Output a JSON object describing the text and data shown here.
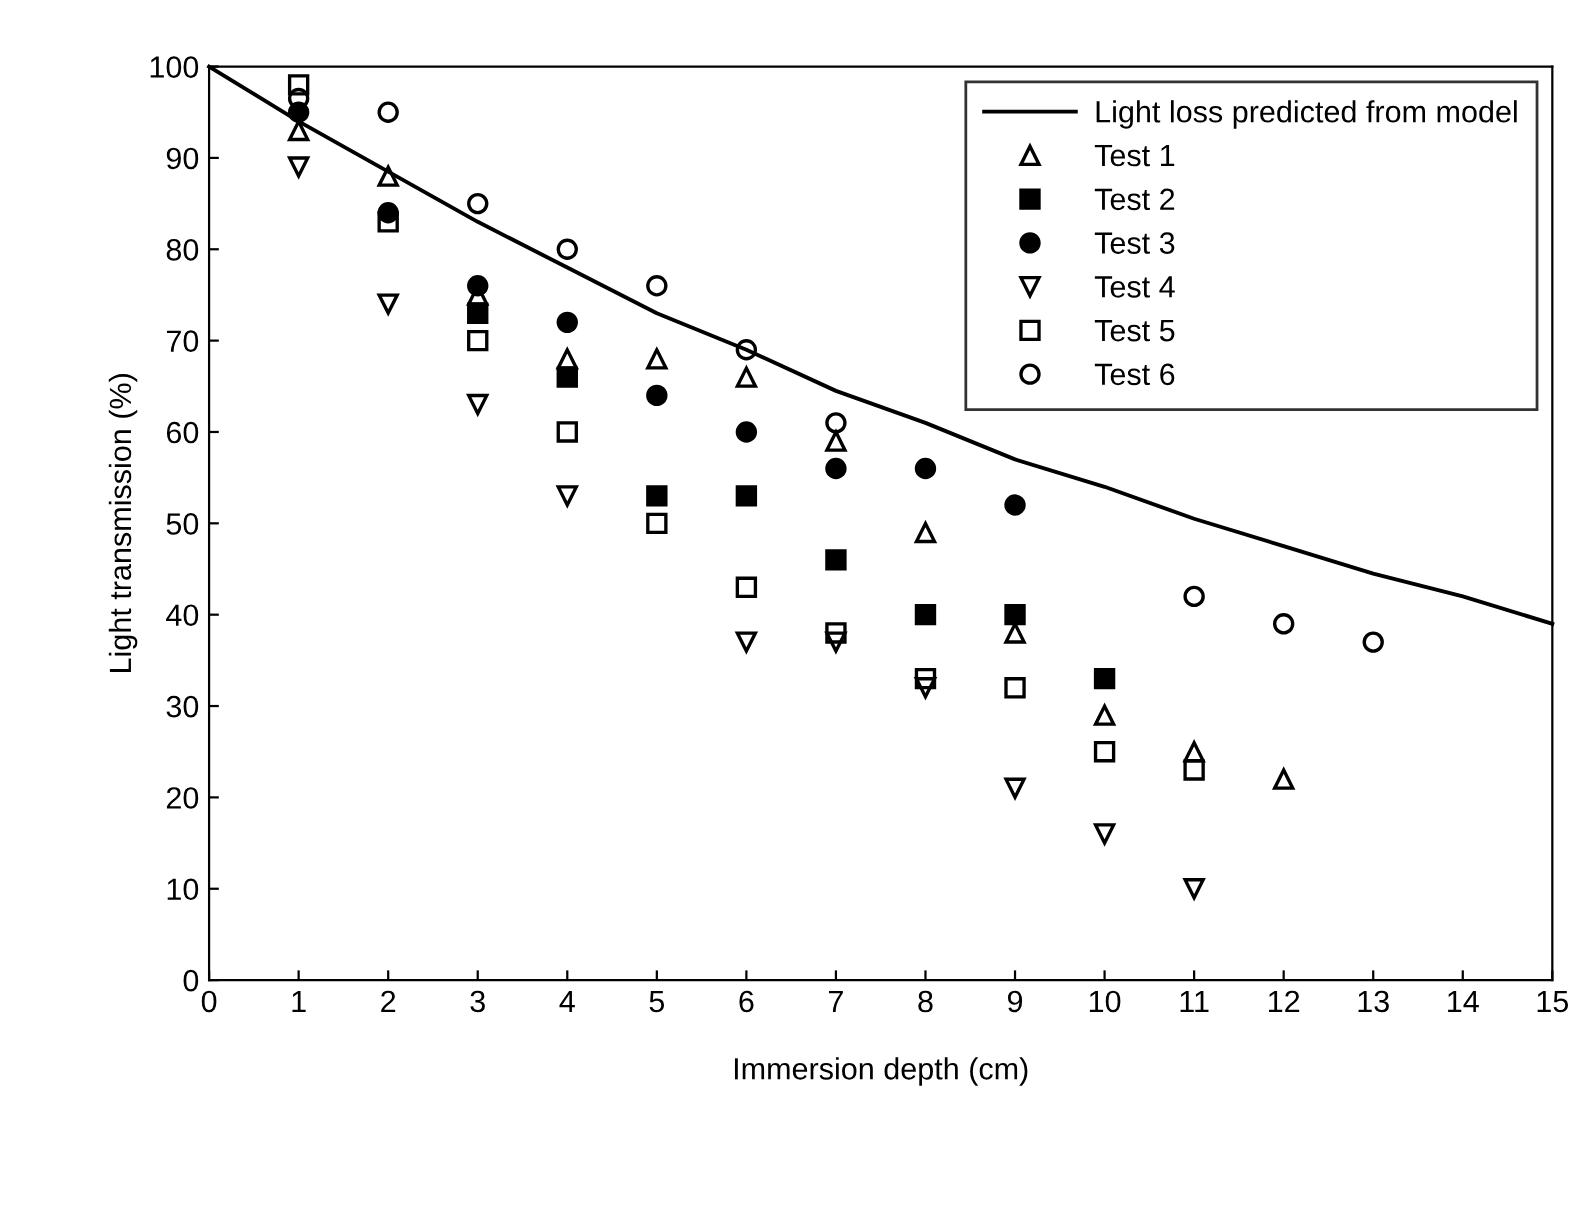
{
  "chart_data": {
    "type": "scatter",
    "xlabel": "Immersion depth (cm)",
    "ylabel": "Light transmission (%)",
    "xlim": [
      0,
      15
    ],
    "xticks": [
      0,
      1,
      2,
      3,
      4,
      5,
      6,
      7,
      8,
      9,
      10,
      11,
      12,
      13,
      14,
      15
    ],
    "ylim": [
      0,
      100
    ],
    "yticks": [
      0,
      10,
      20,
      30,
      40,
      50,
      60,
      70,
      80,
      90,
      100
    ],
    "grid": false,
    "legend": "top right",
    "series": [
      {
        "name": "Light loss predicted from model",
        "type": "line",
        "marker": "none",
        "line_style": "solid",
        "color": "#000000",
        "x": [
          0,
          1,
          2,
          3,
          4,
          5,
          6,
          7,
          8,
          9,
          10,
          11,
          12,
          13,
          14,
          15
        ],
        "values": [
          100,
          94,
          88.5,
          83,
          78,
          73,
          69,
          64.5,
          61,
          57,
          54,
          50.5,
          47.5,
          44.5,
          42,
          39
        ]
      },
      {
        "name": "Test 1",
        "marker": "triangle-open",
        "color": "#000000",
        "x": [
          1,
          2,
          3,
          4,
          5,
          6,
          7,
          8,
          9,
          10,
          11,
          12
        ],
        "values": [
          93,
          88,
          75,
          68,
          68,
          66,
          59,
          49,
          38,
          29,
          25,
          22
        ]
      },
      {
        "name": "Test 2",
        "marker": "square",
        "color": "#000000",
        "x": [
          3,
          4,
          5,
          6,
          7,
          8,
          9,
          10
        ],
        "values": [
          73,
          66,
          53,
          53,
          46,
          40,
          40,
          33
        ]
      },
      {
        "name": "Test 3",
        "marker": "circle",
        "color": "#000000",
        "x": [
          1,
          2,
          3,
          4,
          5,
          6,
          7,
          8,
          9
        ],
        "values": [
          95,
          84,
          76,
          72,
          64,
          60,
          56,
          56,
          52
        ]
      },
      {
        "name": "Test 4",
        "marker": "triangle-down-open",
        "color": "#000000",
        "x": [
          1,
          2,
          3,
          4,
          6,
          7,
          8,
          9,
          10,
          11
        ],
        "values": [
          89,
          74,
          63,
          53,
          37,
          37,
          32,
          21,
          16,
          10
        ]
      },
      {
        "name": "Test 5",
        "marker": "square-open",
        "color": "#000000",
        "x": [
          1,
          2,
          3,
          4,
          5,
          6,
          7,
          8,
          9,
          10,
          11
        ],
        "values": [
          98,
          83,
          70,
          60,
          50,
          43,
          38,
          33,
          32,
          25,
          23
        ]
      },
      {
        "name": "Test 6",
        "marker": "circle-open",
        "color": "#000000",
        "x": [
          1,
          2,
          3,
          4,
          5,
          6,
          7,
          11,
          12,
          13
        ],
        "values": [
          96.5,
          95,
          85,
          80,
          76,
          69,
          61,
          42,
          39,
          37
        ]
      }
    ]
  }
}
